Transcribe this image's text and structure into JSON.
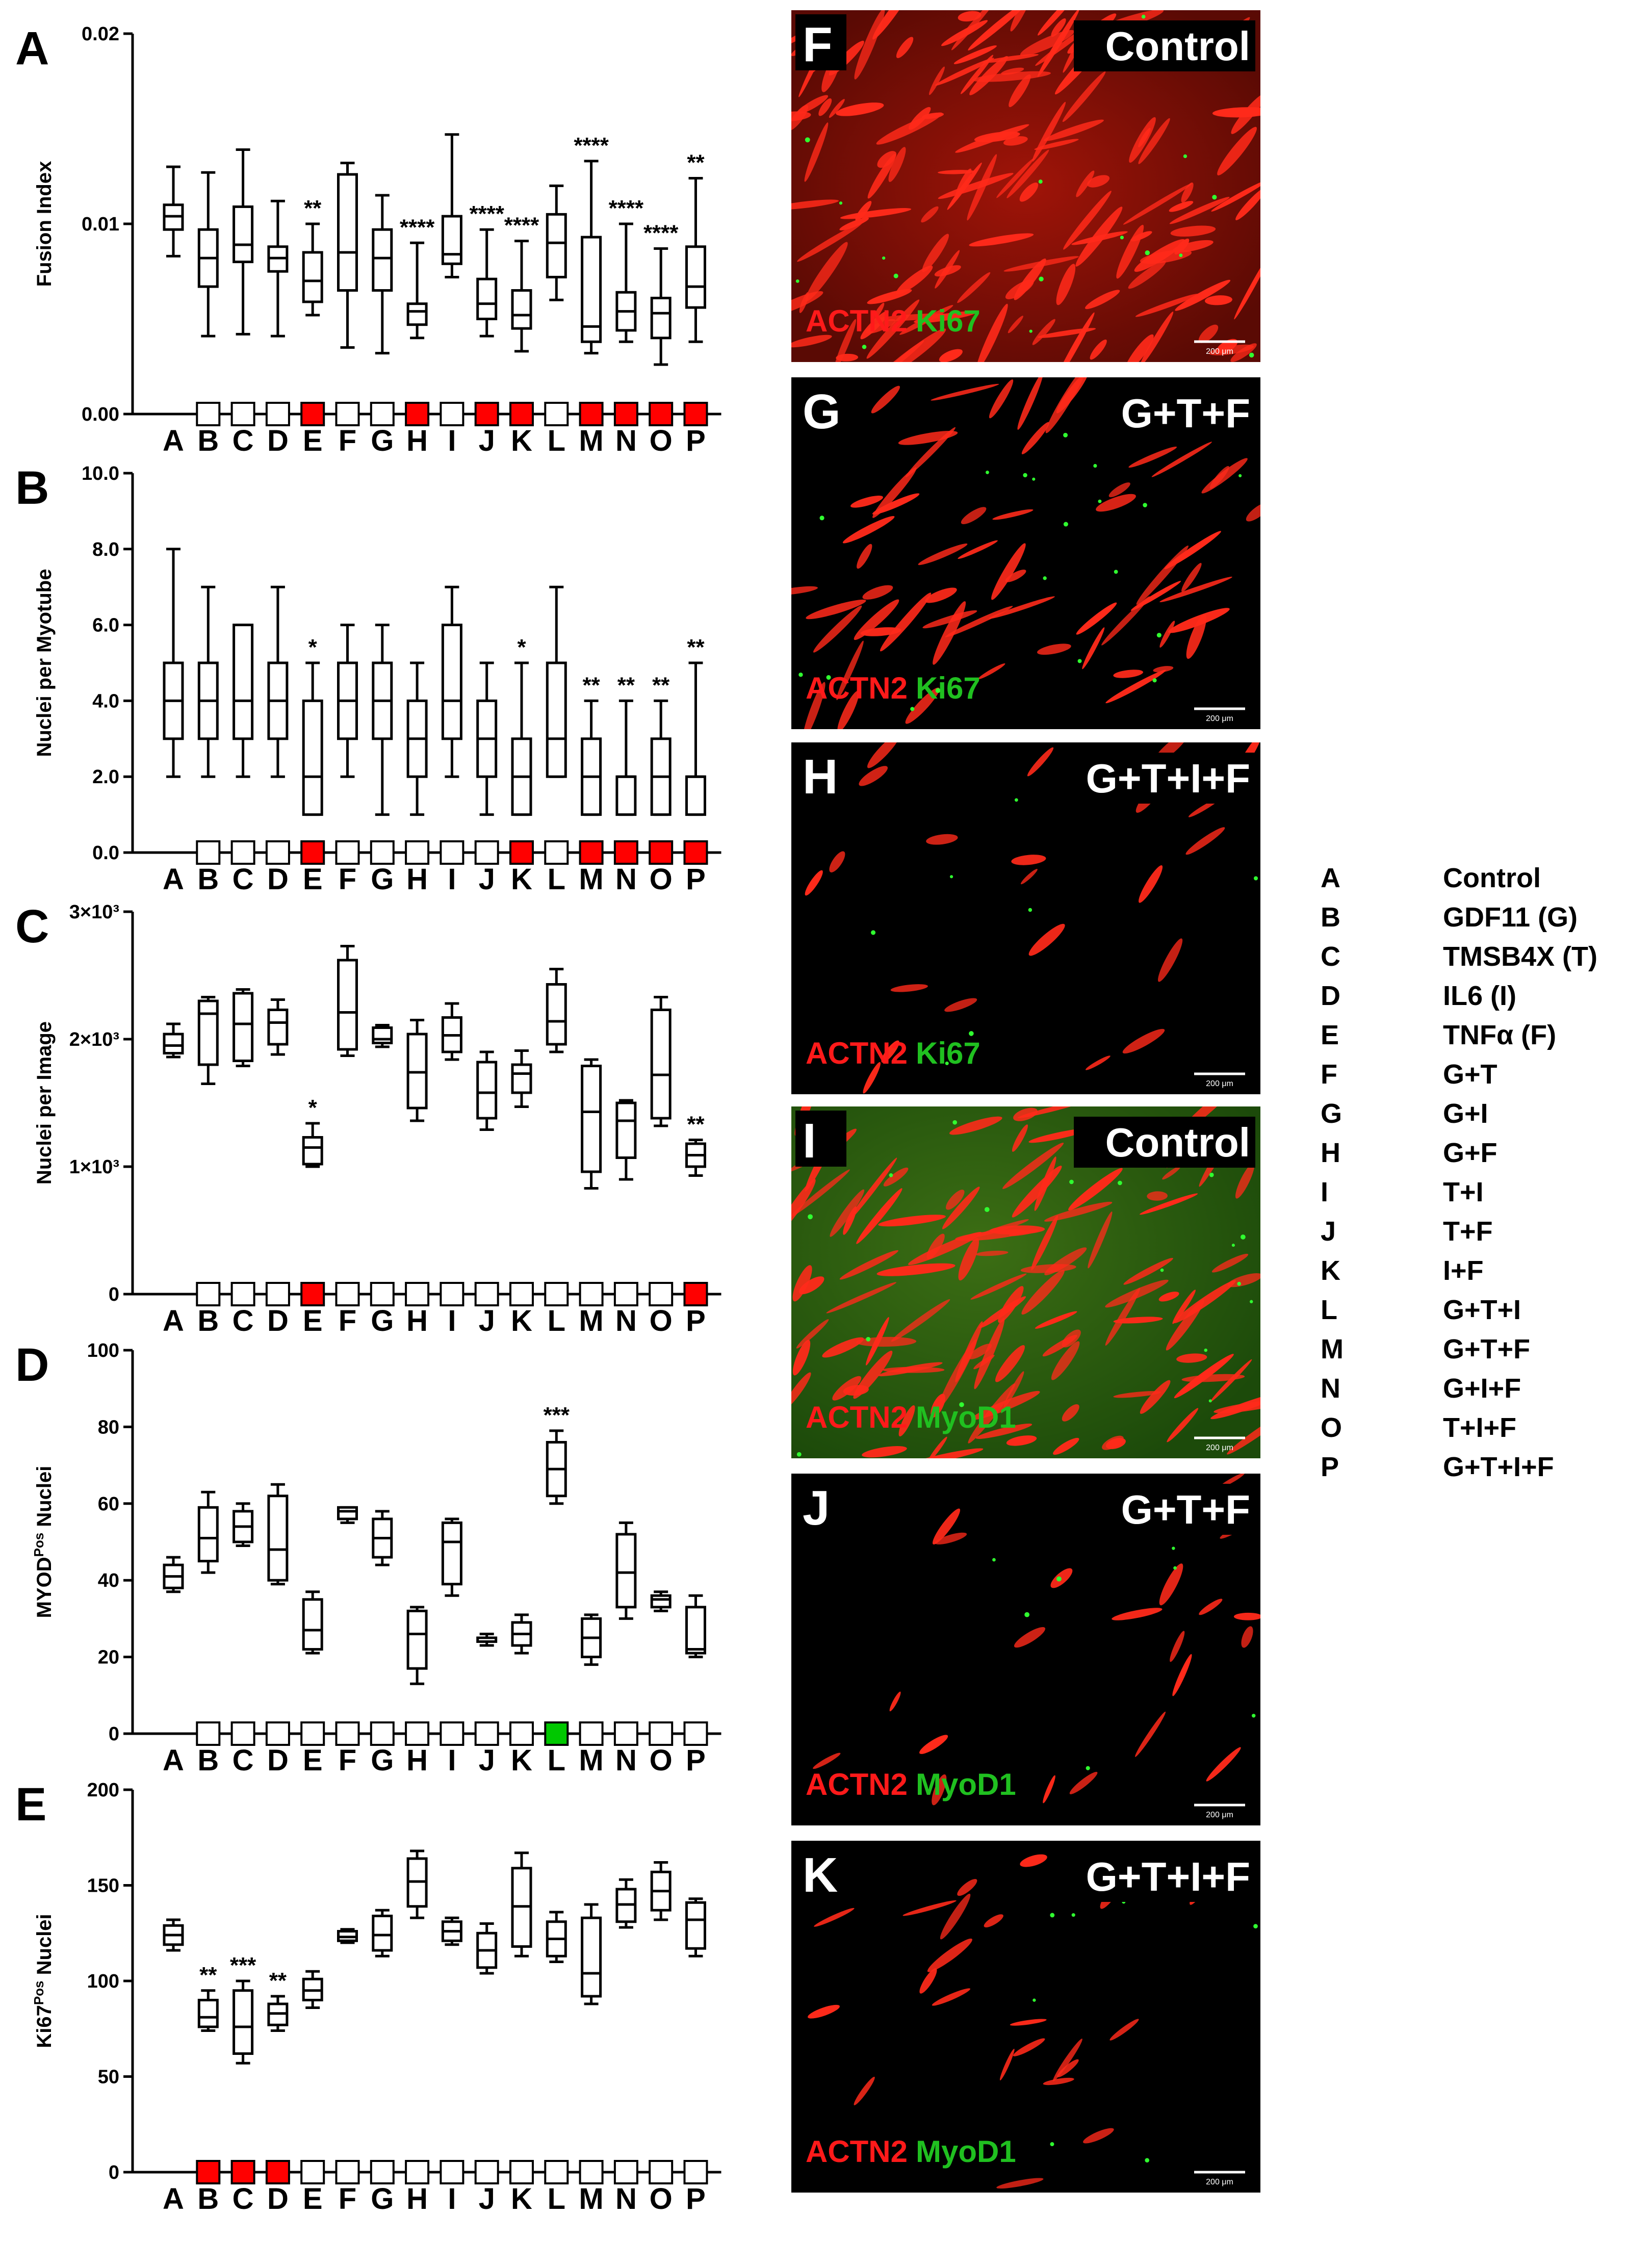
{
  "categories": [
    "A",
    "B",
    "C",
    "D",
    "E",
    "F",
    "G",
    "H",
    "I",
    "J",
    "K",
    "L",
    "M",
    "N",
    "O",
    "P"
  ],
  "colors": {
    "red": "#ff0000",
    "green": "#00c800",
    "white": "#ffffff"
  },
  "chart_data": [
    {
      "panel": "A",
      "type": "box",
      "ylabel": "Fusion Index",
      "ylim": [
        0,
        0.02
      ],
      "yticks": [
        "0.00",
        "0.01",
        "0.02"
      ],
      "ytick_values": [
        0,
        0.01,
        0.02
      ],
      "categories": [
        "A",
        "B",
        "C",
        "D",
        "E",
        "F",
        "G",
        "H",
        "I",
        "J",
        "K",
        "L",
        "M",
        "N",
        "O",
        "P"
      ],
      "boxes": [
        {
          "min": 0.0083,
          "q1": 0.0097,
          "median": 0.0104,
          "q3": 0.011,
          "max": 0.013
        },
        {
          "min": 0.0041,
          "q1": 0.0067,
          "median": 0.0082,
          "q3": 0.0097,
          "max": 0.0127
        },
        {
          "min": 0.0042,
          "q1": 0.008,
          "median": 0.0089,
          "q3": 0.0109,
          "max": 0.0139
        },
        {
          "min": 0.0041,
          "q1": 0.0075,
          "median": 0.0082,
          "q3": 0.0088,
          "max": 0.0112
        },
        {
          "min": 0.0052,
          "q1": 0.0059,
          "median": 0.007,
          "q3": 0.0085,
          "max": 0.01
        },
        {
          "min": 0.0035,
          "q1": 0.0065,
          "median": 0.0085,
          "q3": 0.0126,
          "max": 0.0132
        },
        {
          "min": 0.0032,
          "q1": 0.0065,
          "median": 0.0082,
          "q3": 0.0097,
          "max": 0.0115
        },
        {
          "min": 0.004,
          "q1": 0.0047,
          "median": 0.0054,
          "q3": 0.0058,
          "max": 0.009
        },
        {
          "min": 0.0072,
          "q1": 0.0079,
          "median": 0.0084,
          "q3": 0.0104,
          "max": 0.0147
        },
        {
          "min": 0.0041,
          "q1": 0.005,
          "median": 0.0058,
          "q3": 0.0071,
          "max": 0.0097
        },
        {
          "min": 0.0033,
          "q1": 0.0045,
          "median": 0.0052,
          "q3": 0.0065,
          "max": 0.0091
        },
        {
          "min": 0.006,
          "q1": 0.0072,
          "median": 0.009,
          "q3": 0.0105,
          "max": 0.012
        },
        {
          "min": 0.0032,
          "q1": 0.0038,
          "median": 0.0046,
          "q3": 0.0093,
          "max": 0.0133
        },
        {
          "min": 0.0038,
          "q1": 0.0044,
          "median": 0.0054,
          "q3": 0.0064,
          "max": 0.01
        },
        {
          "min": 0.0026,
          "q1": 0.004,
          "median": 0.0053,
          "q3": 0.0061,
          "max": 0.0087
        },
        {
          "min": 0.0038,
          "q1": 0.0056,
          "median": 0.0067,
          "q3": 0.0088,
          "max": 0.0124
        }
      ],
      "significance": [
        "",
        "",
        "",
        "",
        "**",
        "",
        "",
        "****",
        "",
        "****",
        "****",
        "",
        "****",
        "****",
        "****",
        "**"
      ],
      "markers": [
        "none",
        "white",
        "white",
        "white",
        "red",
        "white",
        "white",
        "red",
        "white",
        "red",
        "red",
        "white",
        "red",
        "red",
        "red",
        "red"
      ]
    },
    {
      "panel": "B",
      "type": "box",
      "ylabel": "Nuclei per Myotube",
      "ylim": [
        0,
        10
      ],
      "yticks": [
        "0.0",
        "2.0",
        "4.0",
        "6.0",
        "8.0",
        "10.0"
      ],
      "ytick_values": [
        0,
        2,
        4,
        6,
        8,
        10
      ],
      "categories": [
        "A",
        "B",
        "C",
        "D",
        "E",
        "F",
        "G",
        "H",
        "I",
        "J",
        "K",
        "L",
        "M",
        "N",
        "O",
        "P"
      ],
      "boxes": [
        {
          "min": 2,
          "q1": 3,
          "median": 4,
          "q3": 5,
          "max": 8
        },
        {
          "min": 2,
          "q1": 3,
          "median": 4,
          "q3": 5,
          "max": 7
        },
        {
          "min": 2,
          "q1": 3,
          "median": 4,
          "q3": 6,
          "max": 6
        },
        {
          "min": 2,
          "q1": 3,
          "median": 4,
          "q3": 5,
          "max": 7
        },
        {
          "min": 1,
          "q1": 1,
          "median": 2,
          "q3": 4,
          "max": 5
        },
        {
          "min": 2,
          "q1": 3,
          "median": 4,
          "q3": 5,
          "max": 6
        },
        {
          "min": 1,
          "q1": 3,
          "median": 4,
          "q3": 5,
          "max": 6
        },
        {
          "min": 1,
          "q1": 2,
          "median": 3,
          "q3": 4,
          "max": 5
        },
        {
          "min": 2,
          "q1": 3,
          "median": 4,
          "q3": 6,
          "max": 7
        },
        {
          "min": 1,
          "q1": 2,
          "median": 3,
          "q3": 4,
          "max": 5
        },
        {
          "min": 1,
          "q1": 1,
          "median": 2,
          "q3": 3,
          "max": 5
        },
        {
          "min": 2,
          "q1": 2,
          "median": 3,
          "q3": 5,
          "max": 7
        },
        {
          "min": 1,
          "q1": 1,
          "median": 2,
          "q3": 3,
          "max": 4
        },
        {
          "min": 1,
          "q1": 1,
          "median": 2,
          "q3": 2,
          "max": 4
        },
        {
          "min": 1,
          "q1": 1,
          "median": 2,
          "q3": 3,
          "max": 4
        },
        {
          "min": 1,
          "q1": 1,
          "median": 2,
          "q3": 2,
          "max": 5
        }
      ],
      "significance": [
        "",
        "",
        "",
        "",
        "*",
        "",
        "",
        "",
        "",
        "",
        "*",
        "",
        "**",
        "**",
        "**",
        "**"
      ],
      "markers": [
        "none",
        "white",
        "white",
        "white",
        "red",
        "white",
        "white",
        "white",
        "white",
        "white",
        "red",
        "white",
        "red",
        "red",
        "red",
        "red"
      ]
    },
    {
      "panel": "C",
      "type": "box",
      "ylabel": "Nuclei per Image",
      "ylim": [
        0,
        3000
      ],
      "yticks": [
        "0",
        "1×10³",
        "2×10³",
        "3×10³"
      ],
      "ytick_values": [
        0,
        1000,
        2000,
        3000
      ],
      "categories": [
        "A",
        "B",
        "C",
        "D",
        "E",
        "F",
        "G",
        "H",
        "I",
        "J",
        "K",
        "L",
        "M",
        "N",
        "O",
        "P"
      ],
      "boxes": [
        {
          "min": 1860,
          "q1": 1890,
          "median": 1950,
          "q3": 2040,
          "max": 2120
        },
        {
          "min": 1650,
          "q1": 1800,
          "median": 2200,
          "q3": 2300,
          "max": 2330
        },
        {
          "min": 1790,
          "q1": 1830,
          "median": 2120,
          "q3": 2360,
          "max": 2390
        },
        {
          "min": 1880,
          "q1": 1960,
          "median": 2130,
          "q3": 2230,
          "max": 2310
        },
        {
          "min": 1000,
          "q1": 1020,
          "median": 1150,
          "q3": 1230,
          "max": 1340
        },
        {
          "min": 1870,
          "q1": 1920,
          "median": 2210,
          "q3": 2620,
          "max": 2730
        },
        {
          "min": 1940,
          "q1": 1970,
          "median": 2000,
          "q3": 2090,
          "max": 2110
        },
        {
          "min": 1360,
          "q1": 1460,
          "median": 1740,
          "q3": 2040,
          "max": 2150
        },
        {
          "min": 1840,
          "q1": 1900,
          "median": 2030,
          "q3": 2170,
          "max": 2280
        },
        {
          "min": 1290,
          "q1": 1380,
          "median": 1580,
          "q3": 1820,
          "max": 1900
        },
        {
          "min": 1470,
          "q1": 1580,
          "median": 1730,
          "q3": 1800,
          "max": 1910
        },
        {
          "min": 1900,
          "q1": 1960,
          "median": 2140,
          "q3": 2430,
          "max": 2550
        },
        {
          "min": 830,
          "q1": 960,
          "median": 1430,
          "q3": 1790,
          "max": 1840
        },
        {
          "min": 900,
          "q1": 1070,
          "median": 1360,
          "q3": 1500,
          "max": 1520
        },
        {
          "min": 1320,
          "q1": 1380,
          "median": 1720,
          "q3": 2230,
          "max": 2330
        },
        {
          "min": 930,
          "q1": 1000,
          "median": 1090,
          "q3": 1180,
          "max": 1210
        }
      ],
      "significance": [
        "",
        "",
        "",
        "",
        "*",
        "",
        "",
        "",
        "",
        "",
        "",
        "",
        "",
        "",
        "",
        "**"
      ],
      "markers": [
        "none",
        "white",
        "white",
        "white",
        "red",
        "white",
        "white",
        "white",
        "white",
        "white",
        "white",
        "white",
        "white",
        "white",
        "white",
        "red"
      ]
    },
    {
      "panel": "D",
      "type": "box",
      "ylabel": "MYOD",
      "ylabel_sup": "Pos",
      "ylabel_tail": " Nuclei",
      "ylim": [
        0,
        100
      ],
      "yticks": [
        "0",
        "20",
        "40",
        "60",
        "80",
        "100"
      ],
      "ytick_values": [
        0,
        20,
        40,
        60,
        80,
        100
      ],
      "categories": [
        "A",
        "B",
        "C",
        "D",
        "E",
        "F",
        "G",
        "H",
        "I",
        "J",
        "K",
        "L",
        "M",
        "N",
        "O",
        "P"
      ],
      "boxes": [
        {
          "min": 37,
          "q1": 38,
          "median": 41,
          "q3": 44,
          "max": 46
        },
        {
          "min": 42,
          "q1": 45,
          "median": 51,
          "q3": 59,
          "max": 63
        },
        {
          "min": 49,
          "q1": 50,
          "median": 54,
          "q3": 58,
          "max": 60
        },
        {
          "min": 39,
          "q1": 40,
          "median": 48,
          "q3": 62,
          "max": 65
        },
        {
          "min": 21,
          "q1": 22,
          "median": 27,
          "q3": 35,
          "max": 37
        },
        {
          "min": 55,
          "q1": 56,
          "median": 58,
          "q3": 59,
          "max": 59
        },
        {
          "min": 44,
          "q1": 46,
          "median": 51,
          "q3": 56,
          "max": 58
        },
        {
          "min": 13,
          "q1": 17,
          "median": 26,
          "q3": 32,
          "max": 33
        },
        {
          "min": 36,
          "q1": 39,
          "median": 50,
          "q3": 55,
          "max": 56
        },
        {
          "min": 23,
          "q1": 24,
          "median": 24,
          "q3": 25,
          "max": 26
        },
        {
          "min": 21,
          "q1": 23,
          "median": 26,
          "q3": 29,
          "max": 31
        },
        {
          "min": 60,
          "q1": 62,
          "median": 69,
          "q3": 76,
          "max": 79
        },
        {
          "min": 18,
          "q1": 20,
          "median": 25,
          "q3": 30,
          "max": 31
        },
        {
          "min": 30,
          "q1": 33,
          "median": 42,
          "q3": 52,
          "max": 55
        },
        {
          "min": 32,
          "q1": 33,
          "median": 35,
          "q3": 36,
          "max": 37
        },
        {
          "min": 20,
          "q1": 21,
          "median": 22,
          "q3": 33,
          "max": 36
        }
      ],
      "significance": [
        "",
        "",
        "",
        "",
        "",
        "",
        "",
        "",
        "",
        "",
        "",
        "***",
        "",
        "",
        "",
        ""
      ],
      "markers": [
        "none",
        "white",
        "white",
        "white",
        "white",
        "white",
        "white",
        "white",
        "white",
        "white",
        "white",
        "green",
        "white",
        "white",
        "white",
        "white"
      ]
    },
    {
      "panel": "E",
      "type": "box",
      "ylabel": "Ki67",
      "ylabel_sup": "Pos",
      "ylabel_tail": " Nuclei",
      "ylim": [
        0,
        200
      ],
      "yticks": [
        "0",
        "50",
        "100",
        "150",
        "200"
      ],
      "ytick_values": [
        0,
        50,
        100,
        150,
        200
      ],
      "categories": [
        "A",
        "B",
        "C",
        "D",
        "E",
        "F",
        "G",
        "H",
        "I",
        "J",
        "K",
        "L",
        "M",
        "N",
        "O",
        "P"
      ],
      "boxes": [
        {
          "min": 116,
          "q1": 119,
          "median": 124,
          "q3": 129,
          "max": 132
        },
        {
          "min": 74,
          "q1": 76,
          "median": 81,
          "q3": 90,
          "max": 95
        },
        {
          "min": 57,
          "q1": 62,
          "median": 76,
          "q3": 95,
          "max": 100
        },
        {
          "min": 74,
          "q1": 77,
          "median": 83,
          "q3": 88,
          "max": 92
        },
        {
          "min": 86,
          "q1": 90,
          "median": 95,
          "q3": 101,
          "max": 105
        },
        {
          "min": 120,
          "q1": 121,
          "median": 123,
          "q3": 126,
          "max": 127
        },
        {
          "min": 113,
          "q1": 116,
          "median": 124,
          "q3": 134,
          "max": 137
        },
        {
          "min": 133,
          "q1": 139,
          "median": 152,
          "q3": 164,
          "max": 168
        },
        {
          "min": 119,
          "q1": 121,
          "median": 126,
          "q3": 131,
          "max": 133
        },
        {
          "min": 104,
          "q1": 107,
          "median": 116,
          "q3": 125,
          "max": 130
        },
        {
          "min": 113,
          "q1": 118,
          "median": 139,
          "q3": 159,
          "max": 167
        },
        {
          "min": 110,
          "q1": 113,
          "median": 122,
          "q3": 131,
          "max": 136
        },
        {
          "min": 88,
          "q1": 92,
          "median": 104,
          "q3": 133,
          "max": 140
        },
        {
          "min": 128,
          "q1": 131,
          "median": 140,
          "q3": 148,
          "max": 153
        },
        {
          "min": 132,
          "q1": 137,
          "median": 147,
          "q3": 157,
          "max": 162
        },
        {
          "min": 113,
          "q1": 117,
          "median": 132,
          "q3": 141,
          "max": 143
        }
      ],
      "significance": [
        "",
        "**",
        "***",
        "**",
        "",
        "",
        "",
        "",
        "",
        "",
        "",
        "",
        "",
        "",
        "",
        ""
      ],
      "markers": [
        "none",
        "red",
        "red",
        "red",
        "white",
        "white",
        "white",
        "white",
        "white",
        "white",
        "white",
        "white",
        "white",
        "white",
        "white",
        "white"
      ]
    }
  ],
  "micrographs": [
    {
      "letter": "F",
      "title": "Control",
      "stain1": "ACTN2",
      "stain2": "Ki67",
      "scale": "200 μm"
    },
    {
      "letter": "G",
      "title": "G+T+F",
      "stain1": "ACTN2",
      "stain2": "Ki67",
      "scale": "200 μm"
    },
    {
      "letter": "H",
      "title": "G+T+I+F",
      "stain1": "ACTN2",
      "stain2": "Ki67",
      "scale": "200 μm"
    },
    {
      "letter": "I",
      "title": "Control",
      "stain1": "ACTN2",
      "stain2": "MyoD1",
      "scale": "200 μm"
    },
    {
      "letter": "J",
      "title": "G+T+F",
      "stain1": "ACTN2",
      "stain2": "MyoD1",
      "scale": "200 μm"
    },
    {
      "letter": "K",
      "title": "G+T+I+F",
      "stain1": "ACTN2",
      "stain2": "MyoD1",
      "scale": "200 μm"
    }
  ],
  "legend": [
    {
      "key": "A",
      "label": "Control"
    },
    {
      "key": "B",
      "label": "GDF11 (G)"
    },
    {
      "key": "C",
      "label": "TMSB4X (T)"
    },
    {
      "key": "D",
      "label": "IL6 (I)"
    },
    {
      "key": "E",
      "label": "TNFα (F)"
    },
    {
      "key": "F",
      "label": "G+T"
    },
    {
      "key": "G",
      "label": "G+I"
    },
    {
      "key": "H",
      "label": "G+F"
    },
    {
      "key": "I",
      "label": "T+I"
    },
    {
      "key": "J",
      "label": "T+F"
    },
    {
      "key": "K",
      "label": "I+F"
    },
    {
      "key": "L",
      "label": "G+T+I"
    },
    {
      "key": "M",
      "label": "G+T+F"
    },
    {
      "key": "N",
      "label": "G+I+F"
    },
    {
      "key": "O",
      "label": "T+I+F"
    },
    {
      "key": "P",
      "label": "G+T+I+F"
    }
  ]
}
